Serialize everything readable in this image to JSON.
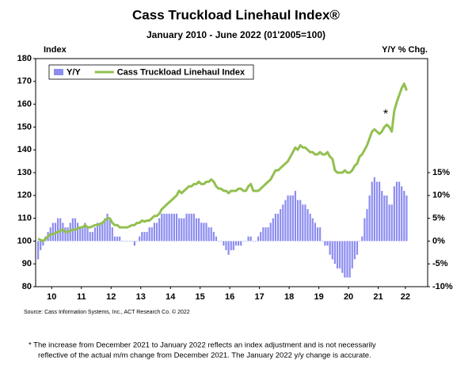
{
  "chart_data": {
    "type": "bar-line",
    "title": "Cass Truckload Linehaul Index®",
    "subtitle": "January 2010 - June 2022 (01'2005=100)",
    "y_label": "Index",
    "y2_label": "Y/Y % Chg.",
    "annotation": "*",
    "source": "Source: Cass Information Systems, Inc., ACT Research Co. © 2022",
    "footnote": [
      "*  The increase from December 2021 to January 2022 reflects an index adjustment and is not necessarily",
      "reflective of the actual m/m change from December 2021. The January 2022 y/y change is accurate."
    ],
    "x": [
      0,
      1,
      2,
      3,
      4,
      5,
      6,
      7,
      8,
      9,
      10,
      11,
      12,
      13,
      14,
      15,
      16,
      17,
      18,
      19,
      20,
      21,
      22,
      23,
      24,
      25,
      26,
      27,
      28,
      29,
      30,
      31,
      32,
      33,
      34,
      35,
      36,
      37,
      38,
      39,
      40,
      41,
      42,
      43,
      44,
      45,
      46,
      47,
      48,
      49,
      50,
      51,
      52,
      53,
      54,
      55,
      56,
      57,
      58,
      59,
      60,
      61,
      62,
      63,
      64,
      65,
      66,
      67,
      68,
      69,
      70,
      71,
      72,
      73,
      74,
      75,
      76,
      77,
      78,
      79,
      80,
      81,
      82,
      83,
      84,
      85,
      86,
      87,
      88,
      89,
      90,
      91,
      92,
      93,
      94,
      95,
      96,
      97,
      98,
      99,
      100,
      101,
      102,
      103,
      104,
      105,
      106,
      107,
      108,
      109,
      110,
      111,
      112,
      113,
      114,
      115,
      116,
      117,
      118,
      119,
      120,
      121,
      122,
      123,
      124,
      125,
      126,
      127,
      128,
      129,
      130,
      131,
      132,
      133,
      134,
      135,
      136,
      137,
      138,
      139,
      140,
      141,
      142,
      143,
      144,
      145,
      146,
      147,
      148,
      149
    ],
    "xlim": [
      -0.5,
      158
    ],
    "xticks": [
      {
        "value": 6,
        "label": "10"
      },
      {
        "value": 18,
        "label": "11"
      },
      {
        "value": 30,
        "label": "12"
      },
      {
        "value": 42,
        "label": "13"
      },
      {
        "value": 54,
        "label": "14"
      },
      {
        "value": 66,
        "label": "15"
      },
      {
        "value": 78,
        "label": "16"
      },
      {
        "value": 90,
        "label": "17"
      },
      {
        "value": 102,
        "label": "18"
      },
      {
        "value": 114,
        "label": "19"
      },
      {
        "value": 126,
        "label": "20"
      },
      {
        "value": 138,
        "label": "21"
      },
      {
        "value": 149,
        "label": "22"
      }
    ],
    "ylim": [
      80,
      180
    ],
    "yticks": [
      80,
      90,
      100,
      110,
      120,
      130,
      140,
      150,
      160,
      170,
      180
    ],
    "y2lim": [
      -10,
      40
    ],
    "y2ticks": [
      {
        "value": -10,
        "label": "-10%"
      },
      {
        "value": -5,
        "label": "-5%"
      },
      {
        "value": 0,
        "label": "0%"
      },
      {
        "value": 5,
        "label": "5%"
      },
      {
        "value": 10,
        "label": "10%"
      },
      {
        "value": 15,
        "label": "15%"
      }
    ],
    "legend": "upper left",
    "series": [
      {
        "name": "Y/Y",
        "type": "bar",
        "axis": "y2",
        "color": "#8c8cf0",
        "values": [
          -4,
          -2,
          -1,
          1,
          2,
          3,
          4,
          4,
          5,
          5,
          4,
          3,
          3,
          4,
          5,
          5,
          4,
          3,
          3,
          4,
          3,
          2,
          2,
          3,
          4,
          4,
          4,
          5,
          6,
          5,
          3,
          1,
          1,
          1,
          0,
          0,
          0,
          0,
          0,
          -1,
          0,
          1,
          2,
          2,
          2,
          3,
          3,
          4,
          4,
          5,
          6,
          6,
          6,
          6,
          6,
          6,
          6,
          5,
          5,
          5,
          6,
          6,
          6,
          6,
          5,
          5,
          4,
          4,
          4,
          3,
          3,
          2,
          1,
          0,
          0,
          -1,
          -2,
          -3,
          -2,
          -2,
          -1,
          -1,
          -1,
          0,
          0,
          1,
          1,
          0,
          0,
          1,
          2,
          3,
          3,
          3,
          4,
          5,
          6,
          6,
          7,
          8,
          9,
          10,
          10,
          10,
          11,
          9,
          9,
          8,
          8,
          7,
          6,
          5,
          4,
          3,
          3,
          0,
          -1,
          -1,
          -3,
          -4,
          -5,
          -6,
          -6,
          -7,
          -8,
          -8,
          -8,
          -6,
          -4,
          -3,
          0,
          1,
          5,
          7,
          10,
          13,
          14,
          13,
          13,
          11,
          10,
          10,
          8,
          8,
          12,
          13,
          13,
          12,
          11,
          10
        ]
      },
      {
        "name": "Cass Truckload Linehaul Index",
        "type": "line",
        "color": "#92c050",
        "values": [
          101,
          100.5,
          100,
          101,
          102,
          103,
          103,
          103.5,
          104,
          104.5,
          105,
          104,
          104,
          104.5,
          105,
          105,
          105.5,
          106,
          106,
          107,
          106,
          106,
          106.5,
          107,
          107,
          107.5,
          108,
          109,
          110,
          110,
          108,
          107,
          107,
          106,
          106,
          106,
          106,
          106.5,
          107,
          107,
          108,
          108,
          109,
          108.5,
          109,
          109,
          110,
          111,
          111,
          112,
          114,
          115,
          116,
          117,
          118,
          119,
          120,
          122,
          121,
          122,
          123,
          124,
          124,
          125,
          125,
          126,
          125,
          125,
          126,
          126,
          127,
          126,
          124,
          123,
          123,
          122,
          122,
          121,
          122,
          122,
          122,
          123,
          123,
          122,
          122,
          124,
          125,
          122,
          122,
          122,
          123,
          124,
          125,
          126,
          127,
          129,
          131,
          131,
          132,
          133,
          134,
          135,
          137,
          139,
          141,
          140,
          142,
          141,
          141,
          140,
          139,
          139,
          138,
          138,
          139,
          138,
          138,
          139,
          137,
          136,
          131,
          130,
          130,
          130,
          131,
          130,
          130,
          131,
          133,
          134,
          137,
          138,
          140,
          142,
          145,
          148,
          149,
          148,
          147,
          148,
          150,
          151,
          150,
          148,
          157,
          161,
          164,
          167,
          169,
          166
        ]
      }
    ]
  }
}
